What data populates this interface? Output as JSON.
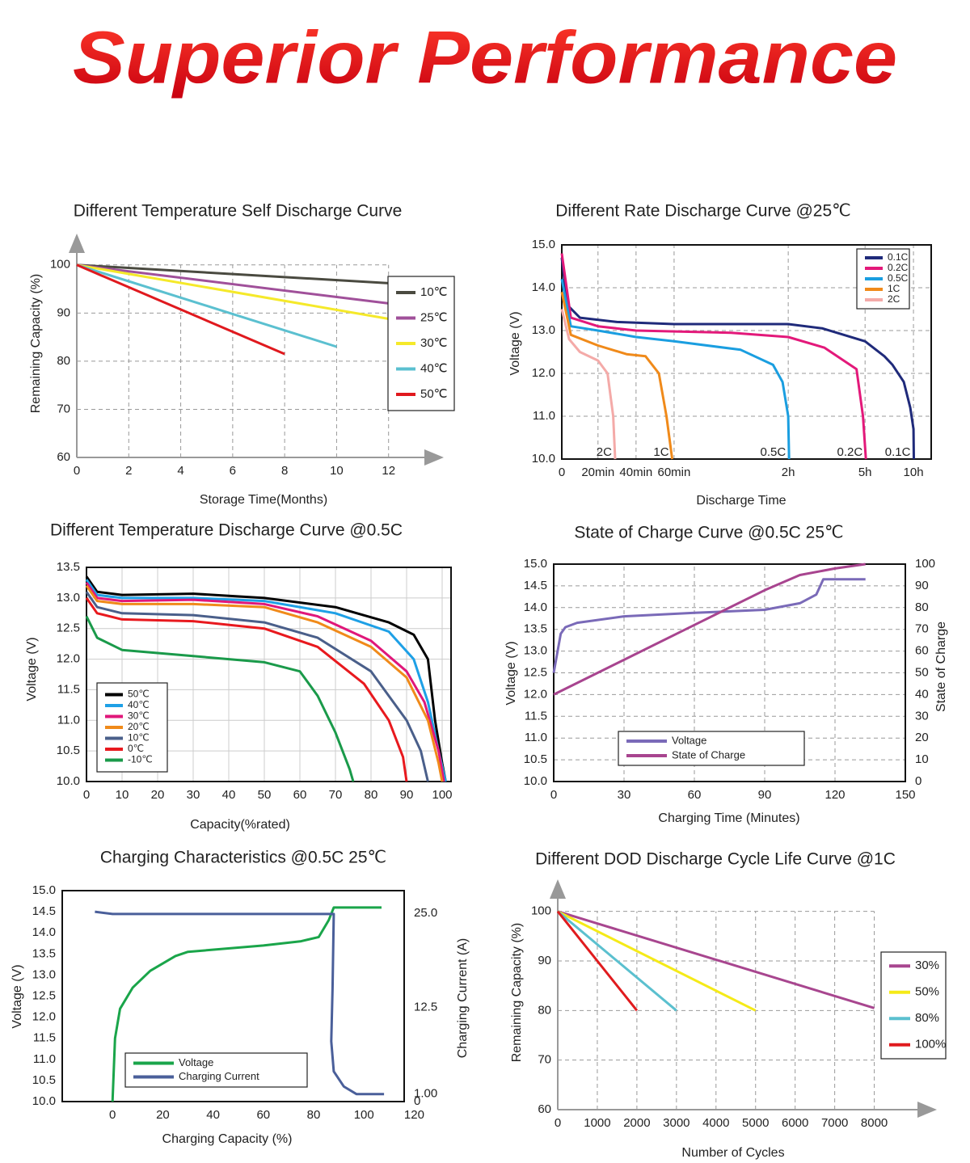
{
  "title": "Superior Performance",
  "chart_data": [
    {
      "type": "line",
      "title": "Different Temperature Self Discharge Curve",
      "x_label": "Storage Time(Months)",
      "y_label": "Remaining Capacity (%)",
      "xlim": [
        0,
        14
      ],
      "ylim": [
        60,
        105
      ],
      "xticks": [
        0,
        2,
        4,
        6,
        8,
        10,
        12
      ],
      "yticks": [
        60,
        70,
        80,
        90,
        100
      ],
      "grid": "dashed",
      "series": [
        {
          "name": "10℃",
          "color": "#4a4a40",
          "x": [
            0,
            12
          ],
          "values": [
            100,
            96.2
          ]
        },
        {
          "name": "25℃",
          "color": "#a0509a",
          "x": [
            0,
            12
          ],
          "values": [
            100,
            92
          ]
        },
        {
          "name": "30℃",
          "color": "#f5e92a",
          "x": [
            0,
            12
          ],
          "values": [
            100,
            88.8
          ]
        },
        {
          "name": "40℃",
          "color": "#5bc0d0",
          "x": [
            0,
            10
          ],
          "values": [
            100,
            83
          ]
        },
        {
          "name": "50℃",
          "color": "#e0191e",
          "x": [
            0,
            8
          ],
          "values": [
            100,
            81.5
          ]
        }
      ]
    },
    {
      "type": "line",
      "title": "Different Rate Discharge Curve @25℃",
      "x_label": "Discharge Time",
      "y_label": "Voltage (V)",
      "xlim": [
        0,
        600
      ],
      "ylim": [
        10,
        15
      ],
      "xticks": [
        0,
        {
          "value": 20,
          "label": "20min"
        },
        {
          "value": 40,
          "label": "40min"
        },
        {
          "value": 60,
          "label": "60min"
        },
        {
          "value": 120,
          "label": "2h"
        },
        {
          "value": 300,
          "label": "5h"
        },
        {
          "value": 600,
          "label": "10h"
        }
      ],
      "yticks": [
        {
          "value": 10,
          "label": "10.0"
        },
        {
          "value": 11,
          "label": "11.0"
        },
        {
          "value": 12,
          "label": "12.0"
        },
        {
          "value": 13,
          "label": "13.0"
        },
        {
          "value": 14,
          "label": "14.0"
        },
        {
          "value": 15,
          "label": "15.0"
        }
      ],
      "grid": "dashed",
      "series": [
        {
          "name": "0.1C",
          "color": "#1f2a7a",
          "x": [
            0,
            3,
            10,
            30,
            60,
            120,
            200,
            300,
            420,
            470,
            540,
            580,
            600,
            602
          ],
          "values": [
            14.7,
            13.6,
            13.3,
            13.2,
            13.15,
            13.15,
            13.05,
            12.75,
            12.4,
            12.2,
            11.8,
            11.2,
            10.7,
            10.0
          ]
        },
        {
          "name": "0.2C",
          "color": "#e3197a",
          "x": [
            0,
            5,
            20,
            40,
            90,
            120,
            205,
            280,
            295,
            305
          ],
          "values": [
            14.8,
            13.3,
            13.1,
            13.0,
            12.95,
            12.85,
            12.6,
            12.1,
            11.0,
            10.0
          ]
        },
        {
          "name": "0.5C",
          "color": "#1a9ee0",
          "x": [
            0,
            5,
            20,
            40,
            60,
            95,
            112,
            117,
            120,
            122
          ],
          "values": [
            14.2,
            13.1,
            13.0,
            12.85,
            12.75,
            12.55,
            12.2,
            11.8,
            11.0,
            10.0
          ]
        },
        {
          "name": "1C",
          "color": "#f08a1a",
          "x": [
            0,
            5,
            20,
            35,
            45,
            52,
            56,
            59
          ],
          "values": [
            13.9,
            12.9,
            12.65,
            12.45,
            12.4,
            12.0,
            11.0,
            10.0
          ]
        },
        {
          "name": "2C",
          "color": "#f4aaa8",
          "x": [
            0,
            4,
            10,
            20,
            25,
            28,
            29
          ],
          "values": [
            13.5,
            12.8,
            12.5,
            12.3,
            12.0,
            11.0,
            10.0
          ]
        }
      ]
    },
    {
      "type": "line",
      "title": "Different Temperature Discharge Curve @0.5C",
      "x_label": "Capacity(%rated)",
      "y_label": "Voltage (V)",
      "xlim": [
        0,
        102.5
      ],
      "ylim": [
        10,
        13.5
      ],
      "xticks": [
        0,
        10,
        20,
        30,
        40,
        50,
        60,
        70,
        80,
        90,
        100
      ],
      "yticks": [
        {
          "value": 10,
          "label": "10.0"
        },
        10.5,
        {
          "value": 11,
          "label": "11.0"
        },
        11.5,
        {
          "value": 12,
          "label": "12.0"
        },
        12.5,
        {
          "value": 13,
          "label": "13.0"
        },
        13.5
      ],
      "grid": "solid",
      "series": [
        {
          "name": "50℃",
          "color": "#000000",
          "x": [
            0,
            3,
            10,
            30,
            50,
            70,
            85,
            92,
            96,
            98,
            100,
            101
          ],
          "values": [
            13.35,
            13.1,
            13.05,
            13.07,
            13.0,
            12.85,
            12.6,
            12.4,
            12.0,
            11.0,
            10.3,
            10.0
          ]
        },
        {
          "name": "40℃",
          "color": "#1ea0e6",
          "x": [
            0,
            3,
            10,
            30,
            50,
            70,
            85,
            92,
            96,
            99,
            101
          ],
          "values": [
            13.3,
            13.05,
            13.0,
            13.0,
            12.95,
            12.75,
            12.45,
            12.0,
            11.3,
            10.5,
            10.0
          ]
        },
        {
          "name": "30℃",
          "color": "#e0177a",
          "x": [
            0,
            3,
            10,
            30,
            50,
            65,
            80,
            90,
            95,
            99,
            100.5
          ],
          "values": [
            13.25,
            13.0,
            12.95,
            12.97,
            12.9,
            12.7,
            12.3,
            11.8,
            11.3,
            10.5,
            10.0
          ]
        },
        {
          "name": "20℃",
          "color": "#f08a1a",
          "x": [
            0,
            3,
            10,
            30,
            50,
            65,
            80,
            90,
            96,
            99,
            100
          ],
          "values": [
            13.2,
            12.95,
            12.9,
            12.9,
            12.85,
            12.6,
            12.2,
            11.7,
            11.0,
            10.3,
            10.0
          ]
        },
        {
          "name": "10℃",
          "color": "#4a5f8a",
          "x": [
            0,
            3,
            10,
            30,
            50,
            65,
            80,
            90,
            94,
            96
          ],
          "values": [
            13.1,
            12.85,
            12.75,
            12.72,
            12.6,
            12.35,
            11.8,
            11.0,
            10.5,
            10.0
          ]
        },
        {
          "name": "0℃",
          "color": "#e8191e",
          "x": [
            0,
            3,
            10,
            30,
            50,
            65,
            78,
            85,
            89,
            90
          ],
          "values": [
            13.0,
            12.75,
            12.65,
            12.62,
            12.5,
            12.2,
            11.6,
            11.0,
            10.4,
            10.0
          ]
        },
        {
          "name": "-10℃",
          "color": "#1a9a4a",
          "x": [
            0,
            3,
            10,
            30,
            50,
            60,
            65,
            70,
            74,
            75
          ],
          "values": [
            12.7,
            12.35,
            12.15,
            12.05,
            11.95,
            11.8,
            11.4,
            10.8,
            10.2,
            10.0
          ]
        }
      ]
    },
    {
      "type": "line",
      "title": "State of Charge Curve @0.5C 25℃",
      "x_label": "Charging Time (Minutes)",
      "y_label": "Voltage (V)",
      "y2_label": "State of Charge",
      "xlim": [
        0,
        150
      ],
      "ylim": [
        10,
        15
      ],
      "y2lim": [
        0,
        100
      ],
      "xticks": [
        0,
        30,
        60,
        90,
        120,
        150
      ],
      "yticks": [
        {
          "value": 10,
          "label": "10.0"
        },
        10.5,
        {
          "value": 11,
          "label": "11.0"
        },
        11.5,
        {
          "value": 12,
          "label": "12.0"
        },
        12.5,
        {
          "value": 13,
          "label": "13.0"
        },
        13.5,
        {
          "value": 14,
          "label": "14.0"
        },
        14.5,
        {
          "value": 15,
          "label": "15.0"
        }
      ],
      "y2ticks": [
        0,
        10,
        20,
        30,
        40,
        50,
        60,
        70,
        80,
        90,
        100
      ],
      "grid": "dashed",
      "series": [
        {
          "name": "Voltage",
          "color": "#7a6ab8",
          "x": [
            0,
            1,
            3,
            5,
            10,
            30,
            60,
            90,
            105,
            112,
            115,
            133
          ],
          "values": [
            12.5,
            12.8,
            13.4,
            13.55,
            13.65,
            13.8,
            13.88,
            13.95,
            14.1,
            14.3,
            14.65,
            14.65
          ]
        },
        {
          "name": "State of Charge",
          "color": "#a8448f",
          "axis": "y2",
          "x": [
            0,
            30,
            60,
            90,
            105,
            120,
            133
          ],
          "values": [
            40,
            56,
            72,
            88,
            95,
            98,
            100
          ]
        }
      ]
    },
    {
      "type": "line",
      "title": "Charging Characteristics @0.5C 25℃",
      "x_label": "Charging Capacity (%)",
      "y_label": "Voltage (V)",
      "y2_label": "Charging Current (A)",
      "xlim": [
        -20,
        116
      ],
      "ylim": [
        10,
        15
      ],
      "y2lim": [
        0,
        28
      ],
      "xticks": [
        0,
        20,
        40,
        60,
        80,
        100,
        120
      ],
      "yticks": [
        {
          "value": 10,
          "label": "10.0"
        },
        10.5,
        {
          "value": 11,
          "label": "11.0"
        },
        11.5,
        {
          "value": 12,
          "label": "12.0"
        },
        12.5,
        {
          "value": 13,
          "label": "13.0"
        },
        13.5,
        {
          "value": 14,
          "label": "14.0"
        },
        14.5,
        {
          "value": 15,
          "label": "15.0"
        }
      ],
      "y2ticks": [
        0,
        {
          "value": 1,
          "label": "1.00"
        },
        12.5,
        {
          "value": 25,
          "label": "25.0"
        }
      ],
      "grid": false,
      "series": [
        {
          "name": "Voltage",
          "color": "#1aa54a",
          "x": [
            0,
            1,
            3,
            8,
            15,
            25,
            30,
            60,
            75,
            82,
            86,
            88,
            107
          ],
          "values": [
            10.0,
            11.5,
            12.2,
            12.7,
            13.1,
            13.45,
            13.55,
            13.7,
            13.8,
            13.9,
            14.3,
            14.6,
            14.6
          ]
        },
        {
          "name": "Charging Current",
          "color": "#4a5f9a",
          "axis": "y2",
          "x": [
            -7,
            0,
            40,
            85,
            88,
            87.5,
            87,
            88,
            92,
            97,
            108
          ],
          "values": [
            25.2,
            24.9,
            24.9,
            24.9,
            24.9,
            15,
            8,
            4,
            2,
            1,
            1
          ]
        }
      ]
    },
    {
      "type": "line",
      "title": "Different DOD Discharge Cycle Life Curve @1C",
      "x_label": "Number of Cycles",
      "y_label": "Remaining Capacity (%)",
      "xlim": [
        0,
        9500
      ],
      "ylim": [
        60,
        105
      ],
      "xticks": [
        0,
        1000,
        2000,
        3000,
        4000,
        5000,
        6000,
        7000,
        8000
      ],
      "yticks": [
        60,
        70,
        80,
        90,
        100
      ],
      "grid": "dashed",
      "series": [
        {
          "name": "30%",
          "color": "#a8468f",
          "x": [
            0,
            8000
          ],
          "values": [
            100,
            80.5
          ]
        },
        {
          "name": "50%",
          "color": "#f5ea18",
          "x": [
            0,
            5000
          ],
          "values": [
            100,
            80
          ]
        },
        {
          "name": "80%",
          "color": "#5bc0cf",
          "x": [
            0,
            3000
          ],
          "values": [
            100,
            80
          ]
        },
        {
          "name": "100%",
          "color": "#e01b1e",
          "x": [
            0,
            2000
          ],
          "values": [
            100,
            80
          ]
        }
      ]
    }
  ]
}
